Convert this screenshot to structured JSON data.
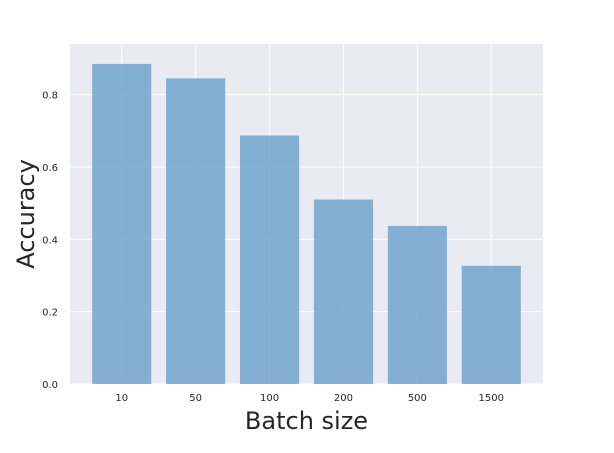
{
  "chart_data": {
    "type": "bar",
    "title": "",
    "xlabel": "Batch size",
    "ylabel": "Accuracy",
    "categories": [
      "10",
      "50",
      "100",
      "200",
      "500",
      "1500"
    ],
    "values": [
      0.885,
      0.845,
      0.687,
      0.51,
      0.437,
      0.327
    ],
    "ylim": [
      0,
      0.94
    ],
    "yticks": [
      "0.0",
      "0.2",
      "0.4",
      "0.6",
      "0.8"
    ],
    "grid": true,
    "colors": {
      "bar": "#78a9d0",
      "plot_background": "#eaeaf2",
      "grid": "#ffffff"
    }
  }
}
